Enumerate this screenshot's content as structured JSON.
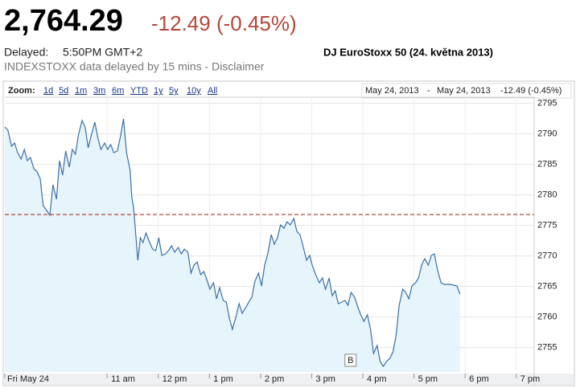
{
  "header": {
    "price": "2,764.29",
    "change": "-12.49 (-0.45%)",
    "delayed_label": "Delayed:",
    "time": "5:50PM GMT+2",
    "source": "INDEXSTOXX data delayed by 15 mins - Disclaimer"
  },
  "zoom": {
    "label": "Zoom:",
    "options": [
      "1d",
      "5d",
      "1m",
      "3m",
      "6m",
      "YTD",
      "1y",
      "5y",
      "10y",
      "All"
    ]
  },
  "range": {
    "from": "May 24, 2013",
    "separator": "-",
    "to": "May 24, 2013",
    "change": "-12.49 (-0.45%)"
  },
  "chart_data": {
    "type": "line",
    "title": "DJ EuroStoxx 50 (24. května 2013)",
    "x": [
      9.0,
      9.06,
      9.13,
      9.19,
      9.25,
      9.32,
      9.38,
      9.44,
      9.5,
      9.57,
      9.63,
      9.69,
      9.75,
      9.82,
      9.88,
      9.94,
      10.01,
      10.07,
      10.13,
      10.19,
      10.26,
      10.32,
      10.38,
      10.44,
      10.51,
      10.57,
      10.63,
      10.7,
      10.76,
      10.82,
      10.88,
      10.95,
      11.01,
      11.07,
      11.13,
      11.2,
      11.26,
      11.32,
      11.38,
      11.45,
      11.48,
      11.52,
      11.57,
      11.6,
      11.65,
      11.7,
      11.76,
      11.82,
      11.89,
      11.95,
      12.01,
      12.07,
      12.14,
      12.2,
      12.26,
      12.32,
      12.39,
      12.45,
      12.51,
      12.58,
      12.64,
      12.7,
      12.76,
      12.83,
      12.89,
      12.95,
      13.01,
      13.08,
      13.14,
      13.2,
      13.27,
      13.33,
      13.39,
      13.45,
      13.52,
      13.58,
      13.64,
      13.7,
      13.77,
      13.83,
      13.89,
      13.96,
      14.02,
      14.08,
      14.14,
      14.21,
      14.27,
      14.33,
      14.39,
      14.46,
      14.52,
      14.58,
      14.65,
      14.71,
      14.77,
      14.83,
      14.9,
      14.96,
      15.02,
      15.08,
      15.15,
      15.21,
      15.27,
      15.34,
      15.4,
      15.46,
      15.52,
      15.59,
      15.65,
      15.71,
      15.77,
      15.84,
      15.9,
      15.96,
      16.02,
      16.09,
      16.15,
      16.21,
      16.28,
      16.34,
      16.4,
      16.46,
      16.53,
      16.59,
      16.65,
      16.71,
      16.78,
      16.84,
      16.9,
      16.96,
      17.03,
      17.09,
      17.15,
      17.21,
      17.28,
      17.34,
      17.4,
      17.46,
      17.53,
      17.59,
      17.65,
      17.71,
      17.78,
      17.84,
      17.9
    ],
    "series": [
      {
        "color": "#3b6fa8",
        "fill": "#e6f4fb",
        "values": [
          2791.13,
          2790.61,
          2787.97,
          2788.5,
          2786.92,
          2785.87,
          2787.45,
          2785.61,
          2786.13,
          2784.29,
          2783.76,
          2782.71,
          2778.24,
          2777.45,
          2776.66,
          2781.66,
          2779.29,
          2785.61,
          2783.24,
          2787.18,
          2784.55,
          2787.45,
          2786.66,
          2789.82,
          2792.18,
          2791.13,
          2787.71,
          2790.08,
          2791.92,
          2789.29,
          2787.45,
          2788.5,
          2787.45,
          2788.24,
          2786.92,
          2787.18,
          2789.55,
          2792.45,
          2786.92,
          2784.03,
          2779.82,
          2777.71,
          2772.45,
          2769.29,
          2772.97,
          2772.18,
          2773.76,
          2772.45,
          2771.13,
          2770.87,
          2772.97,
          2770.08,
          2770.34,
          2770.87,
          2771.66,
          2770.61,
          2771.39,
          2770.34,
          2771.13,
          2770.61,
          2767.18,
          2768.5,
          2769.03,
          2766.92,
          2767.45,
          2766.13,
          2764.55,
          2765.61,
          2762.97,
          2764.82,
          2762.71,
          2762.45,
          2759.82,
          2757.97,
          2760.08,
          2762.18,
          2760.61,
          2761.39,
          2762.45,
          2763.24,
          2765.87,
          2767.18,
          2765.08,
          2768.5,
          2770.34,
          2773.5,
          2771.92,
          2772.97,
          2775.08,
          2774.55,
          2775.61,
          2775.08,
          2776.13,
          2774.03,
          2773.5,
          2771.66,
          2769.29,
          2770.08,
          2768.24,
          2766.92,
          2765.61,
          2766.39,
          2764.55,
          2766.39,
          2763.5,
          2764.29,
          2762.18,
          2762.45,
          2762.71,
          2761.92,
          2764.03,
          2763.24,
          2761.66,
          2760.34,
          2759.29,
          2760.34,
          2757.97,
          2754.03,
          2755.34,
          2752.71,
          2751.92,
          2752.71,
          2753.24,
          2754.29,
          2756.92,
          2761.92,
          2764.55,
          2764.03,
          2762.97,
          2765.08,
          2765.61,
          2766.39,
          2768.5,
          2769.55,
          2768.5,
          2770.08,
          2770.34,
          2767.71,
          2765.61,
          2765.34,
          2765.34,
          2765.34,
          2765.21,
          2765.08,
          2763.76
        ]
      }
    ],
    "previous_close": 2776.78,
    "previous_close_color": "#a8342c",
    "annotations": [
      {
        "label": "B",
        "x": 15.76
      }
    ],
    "xlim": [
      9,
      19.35
    ],
    "xticks": [
      {
        "value": 9,
        "label": "Fri May 24"
      },
      {
        "value": 11,
        "label": "11 am"
      },
      {
        "value": 12,
        "label": "12 pm"
      },
      {
        "value": 13,
        "label": "1 pm"
      },
      {
        "value": 14,
        "label": "2 pm"
      },
      {
        "value": 15,
        "label": "3 pm"
      },
      {
        "value": 16,
        "label": "4 pm"
      },
      {
        "value": 17,
        "label": "5 pm"
      },
      {
        "value": 18,
        "label": "6 pm"
      },
      {
        "value": 19,
        "label": "7 pm"
      }
    ],
    "ylim": [
      2751,
      2796
    ],
    "yticks": [
      2755,
      2760,
      2765,
      2770,
      2775,
      2780,
      2785,
      2790,
      2795
    ],
    "grid": true
  }
}
